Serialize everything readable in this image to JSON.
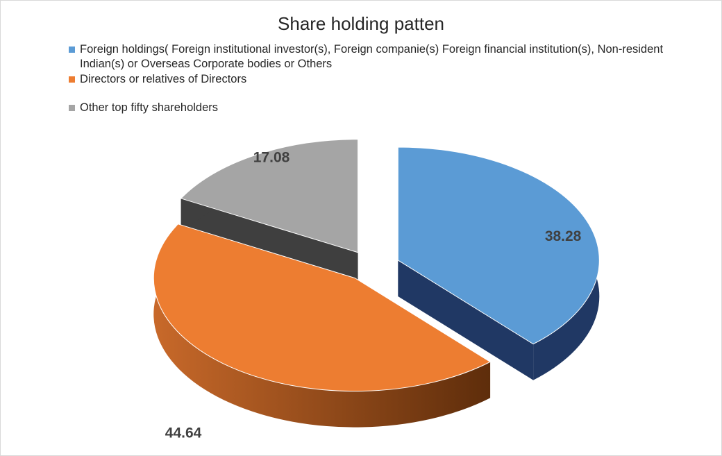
{
  "chart_data": {
    "type": "pie",
    "title": "Share holding patten",
    "legend_position": "top",
    "three_d": true,
    "exploded": true,
    "slices": [
      {
        "label": "Foreign holdings( Foreign institutional investor(s), Foreign companie(s) Foreign financial institution(s), Non-resident Indian(s) or Overseas Corporate bodies or Others",
        "value": 38.28,
        "value_label": "38.28",
        "color": "#5b9bd5"
      },
      {
        "label": "Directors or relatives of Directors",
        "value": 44.64,
        "value_label": "44.64",
        "color": "#ed7d31"
      },
      {
        "label": "Other top fifty shareholders",
        "value": 17.08,
        "value_label": "17.08",
        "color": "#a5a5a5"
      }
    ]
  }
}
